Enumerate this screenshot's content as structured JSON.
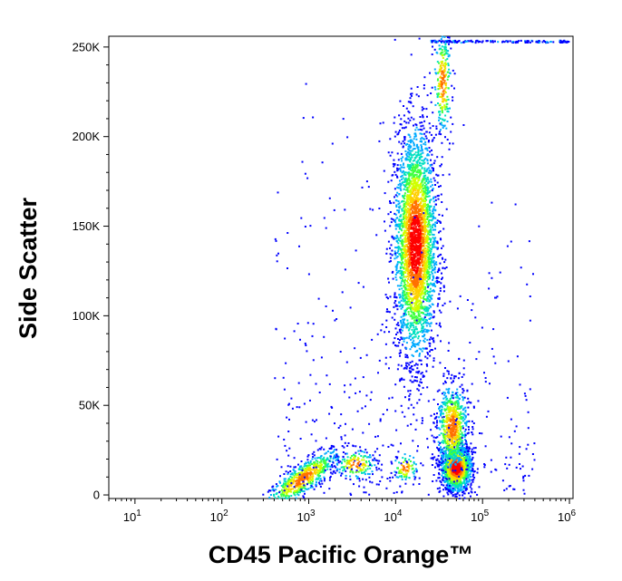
{
  "chart_data": {
    "type": "scatter",
    "title": "",
    "xlabel": "CD45 Pacific Orange™",
    "ylabel": "Side Scatter",
    "x_scale": "log",
    "xlim": [
      5,
      1100000
    ],
    "ylim": [
      -2000,
      256000
    ],
    "x_ticks": [
      {
        "value": 10,
        "base": "10",
        "exp": "1"
      },
      {
        "value": 100,
        "base": "10",
        "exp": "2"
      },
      {
        "value": 1000,
        "base": "10",
        "exp": "3"
      },
      {
        "value": 10000,
        "base": "10",
        "exp": "4"
      },
      {
        "value": 100000,
        "base": "10",
        "exp": "5"
      },
      {
        "value": 1000000,
        "base": "10",
        "exp": "6"
      }
    ],
    "y_ticks": [
      {
        "value": 0,
        "label": "0"
      },
      {
        "value": 50000,
        "label": "50K"
      },
      {
        "value": 100000,
        "label": "100K"
      },
      {
        "value": 150000,
        "label": "150K"
      },
      {
        "value": 200000,
        "label": "200K"
      },
      {
        "value": 250000,
        "label": "250K"
      }
    ],
    "grid": false,
    "colormap": [
      "#0000ff",
      "#00aaff",
      "#00e0c0",
      "#40ff40",
      "#d0ff00",
      "#ffd000",
      "#ff7000",
      "#ff0000"
    ],
    "populations": [
      {
        "name": "",
        "x_center": 850,
        "y_center": 9000,
        "x_spread_log": 0.22,
        "y_spread": 4500,
        "count": 650,
        "tilt": 7000
      },
      {
        "name": "",
        "x_center": 17000,
        "y_center": 140000,
        "x_spread_log": 0.12,
        "y_spread": 32000,
        "count": 3200,
        "tilt": 0
      },
      {
        "name": "",
        "x_center": 50000,
        "y_center": 15000,
        "x_spread_log": 0.09,
        "y_spread": 6500,
        "count": 1300,
        "tilt": 0
      },
      {
        "name": "",
        "x_center": 45000,
        "y_center": 38000,
        "x_spread_log": 0.09,
        "y_spread": 12000,
        "count": 700,
        "tilt": 0
      },
      {
        "name": "",
        "x_center": 35000,
        "y_center": 230000,
        "x_spread_log": 0.05,
        "y_spread": 15000,
        "count": 260,
        "tilt": 0
      },
      {
        "name": "",
        "x_center": 3500,
        "y_center": 17000,
        "x_spread_log": 0.12,
        "y_spread": 4000,
        "count": 160,
        "tilt": 0
      },
      {
        "name": "",
        "x_center": 13000,
        "y_center": 15000,
        "x_spread_log": 0.07,
        "y_spread": 4000,
        "count": 90,
        "tilt": 0
      }
    ],
    "background_points": 450,
    "saturated_band": {
      "y": 253000,
      "x_from": 25000,
      "x_to": 1000000
    }
  }
}
